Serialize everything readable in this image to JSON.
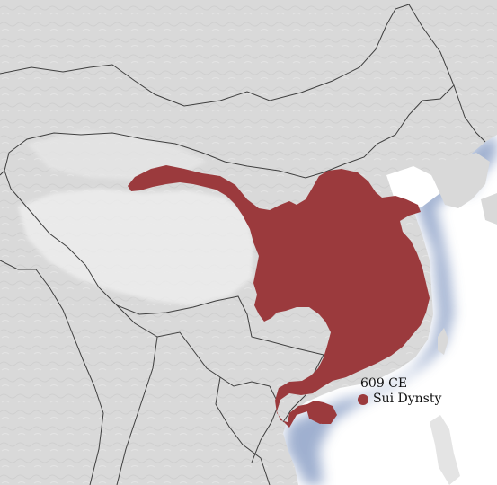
{
  "map": {
    "colors": {
      "territory": "#9b3a3d",
      "land": "#d9d9d9",
      "sea": "#ffffff",
      "coast_shadow": "#8fa3c8",
      "border": "#3f3f3f"
    }
  },
  "legend": {
    "year": "609 CE",
    "entry_label": "Sui Dynsty"
  }
}
